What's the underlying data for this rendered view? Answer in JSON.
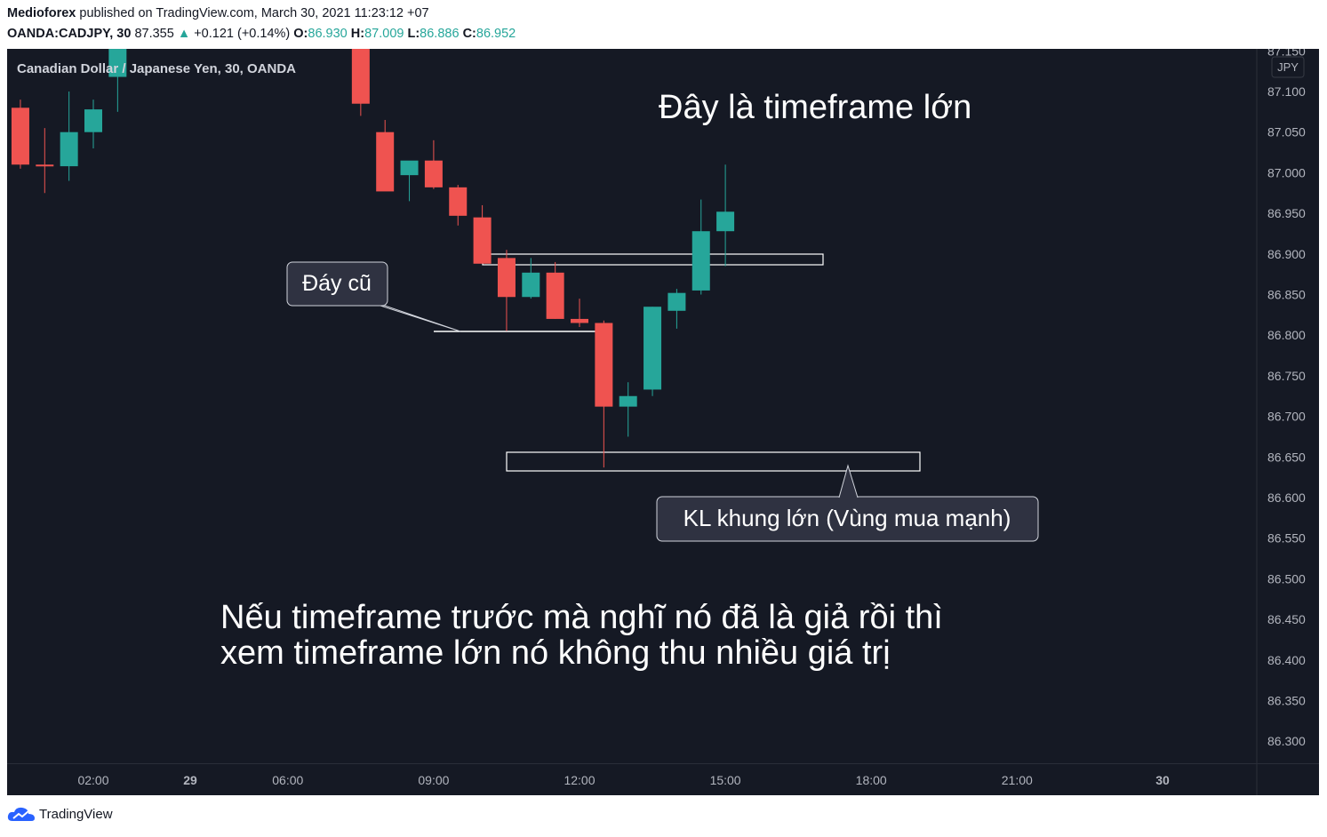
{
  "header": {
    "author": "Medioforex",
    "published_text": "published on TradingView.com, March 30, 2021 11:23:12 +07",
    "symbol": "OANDA:CADJPY, 30",
    "last_price": "87.355",
    "change": "+0.121 (+0.14%)",
    "o_label": "O:",
    "o_value": "86.930",
    "h_label": "H:",
    "h_value": "87.009",
    "l_label": "L:",
    "l_value": "86.886",
    "c_label": "C:",
    "c_value": "86.952"
  },
  "footer": {
    "brand": "TradingView"
  },
  "colors": {
    "background": "#151924",
    "up": "#26a69a",
    "down": "#ef5350",
    "text": "#d1d4dc",
    "axis_text": "#b2b5be"
  },
  "chart_data": {
    "type": "candlestick",
    "title": "Canadian Dollar / Japanese Yen, 30, OANDA",
    "currency_label": "JPY",
    "x_ticks": [
      "02:00",
      "29",
      "06:00",
      "09:00",
      "12:00",
      "15:00",
      "18:00",
      "21:00",
      "30"
    ],
    "y_ticks": [
      "87.150",
      "87.100",
      "87.050",
      "87.000",
      "86.950",
      "86.900",
      "86.850",
      "86.800",
      "86.750",
      "86.700",
      "86.650",
      "86.600",
      "86.550",
      "86.500",
      "86.450",
      "86.400",
      "86.350",
      "86.300"
    ],
    "ylim": [
      86.27,
      87.155
    ],
    "candles": [
      {
        "time": "00:30",
        "o": 87.08,
        "h": 87.09,
        "l": 87.005,
        "c": 87.01
      },
      {
        "time": "01:00",
        "o": 87.01,
        "h": 87.055,
        "l": 86.975,
        "c": 87.008
      },
      {
        "time": "01:30",
        "o": 87.008,
        "h": 87.1,
        "l": 86.99,
        "c": 87.05
      },
      {
        "time": "02:00",
        "o": 87.05,
        "h": 87.09,
        "l": 87.03,
        "c": 87.078
      },
      {
        "time": "02:30",
        "o": 87.118,
        "h": 87.16,
        "l": 87.075,
        "c": 87.155
      },
      {
        "time": "07:30",
        "o": 87.155,
        "h": 87.16,
        "l": 87.07,
        "c": 87.085
      },
      {
        "time": "08:00",
        "o": 87.05,
        "h": 87.065,
        "l": 86.98,
        "c": 86.977
      },
      {
        "time": "08:30",
        "o": 86.997,
        "h": 87.01,
        "l": 86.965,
        "c": 87.015
      },
      {
        "time": "09:00",
        "o": 87.015,
        "h": 87.04,
        "l": 86.98,
        "c": 86.982
      },
      {
        "time": "09:30",
        "o": 86.982,
        "h": 86.985,
        "l": 86.935,
        "c": 86.947
      },
      {
        "time": "10:00",
        "o": 86.945,
        "h": 86.96,
        "l": 86.89,
        "c": 86.888
      },
      {
        "time": "10:30",
        "o": 86.895,
        "h": 86.905,
        "l": 86.805,
        "c": 86.847
      },
      {
        "time": "11:00",
        "o": 86.847,
        "h": 86.895,
        "l": 86.845,
        "c": 86.877
      },
      {
        "time": "11:30",
        "o": 86.877,
        "h": 86.89,
        "l": 86.82,
        "c": 86.82
      },
      {
        "time": "12:00",
        "o": 86.82,
        "h": 86.845,
        "l": 86.81,
        "c": 86.815
      },
      {
        "time": "12:30",
        "o": 86.815,
        "h": 86.818,
        "l": 86.637,
        "c": 86.712
      },
      {
        "time": "13:00",
        "o": 86.712,
        "h": 86.742,
        "l": 86.675,
        "c": 86.725
      },
      {
        "time": "13:30",
        "o": 86.733,
        "h": 86.835,
        "l": 86.725,
        "c": 86.835
      },
      {
        "time": "14:00",
        "o": 86.83,
        "h": 86.857,
        "l": 86.808,
        "c": 86.852
      },
      {
        "time": "14:30",
        "o": 86.855,
        "h": 86.967,
        "l": 86.85,
        "c": 86.928
      },
      {
        "time": "15:00",
        "o": 86.928,
        "h": 87.01,
        "l": 86.885,
        "c": 86.952
      }
    ],
    "annotations": [
      {
        "text": "Đây là timeframe lớn"
      },
      {
        "text": "Đáy cũ"
      },
      {
        "text": "KL khung lớn (Vùng mua mạnh)"
      },
      {
        "text": "Nếu timeframe trước mà nghĩ nó đã là giả rồi thì"
      },
      {
        "text": "xem timeframe lớn nó không thu nhiều giá trị"
      }
    ]
  }
}
